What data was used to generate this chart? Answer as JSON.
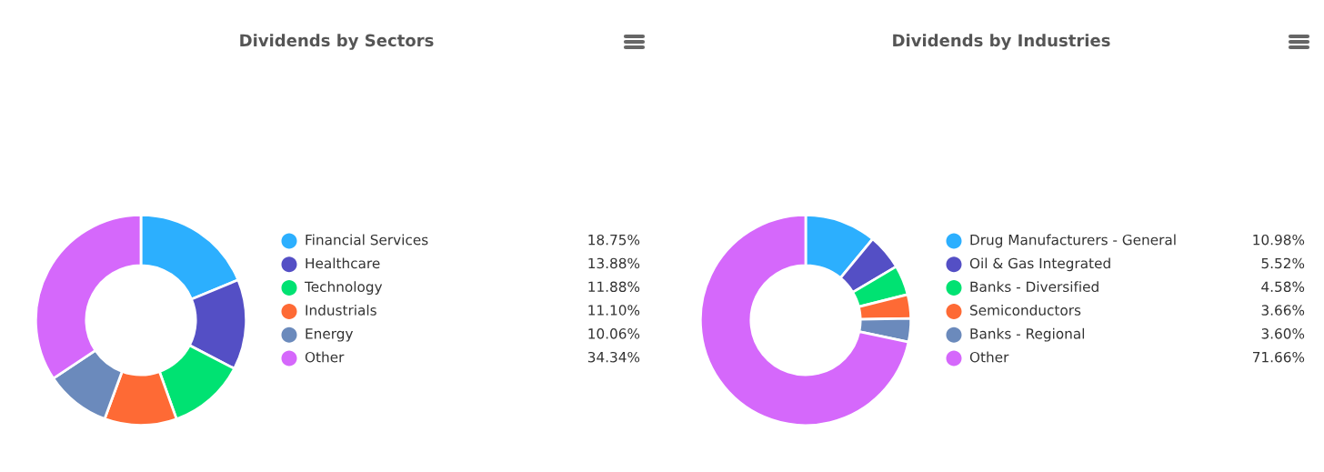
{
  "chart_data": [
    {
      "type": "donut",
      "title": "Dividends by Sectors",
      "categories": [
        "Financial Services",
        "Healthcare",
        "Technology",
        "Industrials",
        "Energy",
        "Other"
      ],
      "values": [
        18.75,
        13.88,
        11.88,
        11.1,
        10.06,
        34.34
      ],
      "value_labels": [
        "18.75%",
        "13.88%",
        "11.88%",
        "11.10%",
        "10.06%",
        "34.34%"
      ],
      "colors": [
        "#2caffe",
        "#544fc5",
        "#00e272",
        "#fe6a35",
        "#6b8abc",
        "#d568fb"
      ],
      "legend": "right"
    },
    {
      "type": "donut",
      "title": "Dividends by Industries",
      "categories": [
        "Drug Manufacturers - General",
        "Oil & Gas Integrated",
        "Banks - Diversified",
        "Semiconductors",
        "Banks - Regional",
        "Other"
      ],
      "values": [
        10.98,
        5.52,
        4.58,
        3.66,
        3.6,
        71.66
      ],
      "value_labels": [
        "10.98%",
        "5.52%",
        "4.58%",
        "3.66%",
        "3.60%",
        "71.66%"
      ],
      "colors": [
        "#2caffe",
        "#544fc5",
        "#00e272",
        "#fe6a35",
        "#6b8abc",
        "#d568fb"
      ],
      "legend": "right"
    }
  ]
}
